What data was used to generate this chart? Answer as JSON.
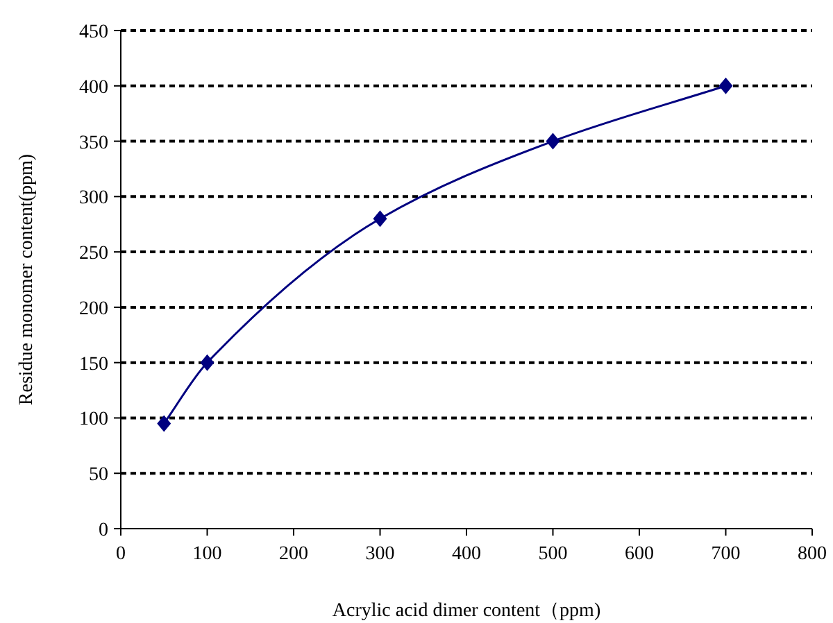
{
  "chart_data": {
    "type": "line",
    "xlabel": "Acrylic acid dimer content（ppm)",
    "ylabel": "Residue monomer content(ppm)",
    "x": [
      50,
      100,
      300,
      500,
      700
    ],
    "series": [
      {
        "color": "#000080",
        "values": [
          95,
          150,
          280,
          350,
          400
        ],
        "marker": "diamond"
      }
    ],
    "xlim": [
      0,
      800
    ],
    "xticks": [
      0,
      100,
      200,
      300,
      400,
      500,
      600,
      700,
      800
    ],
    "ylim": [
      0,
      450
    ],
    "yticks": [
      0,
      50,
      100,
      150,
      200,
      250,
      300,
      350,
      400,
      450
    ],
    "grid": "y",
    "line_style": "solid"
  }
}
